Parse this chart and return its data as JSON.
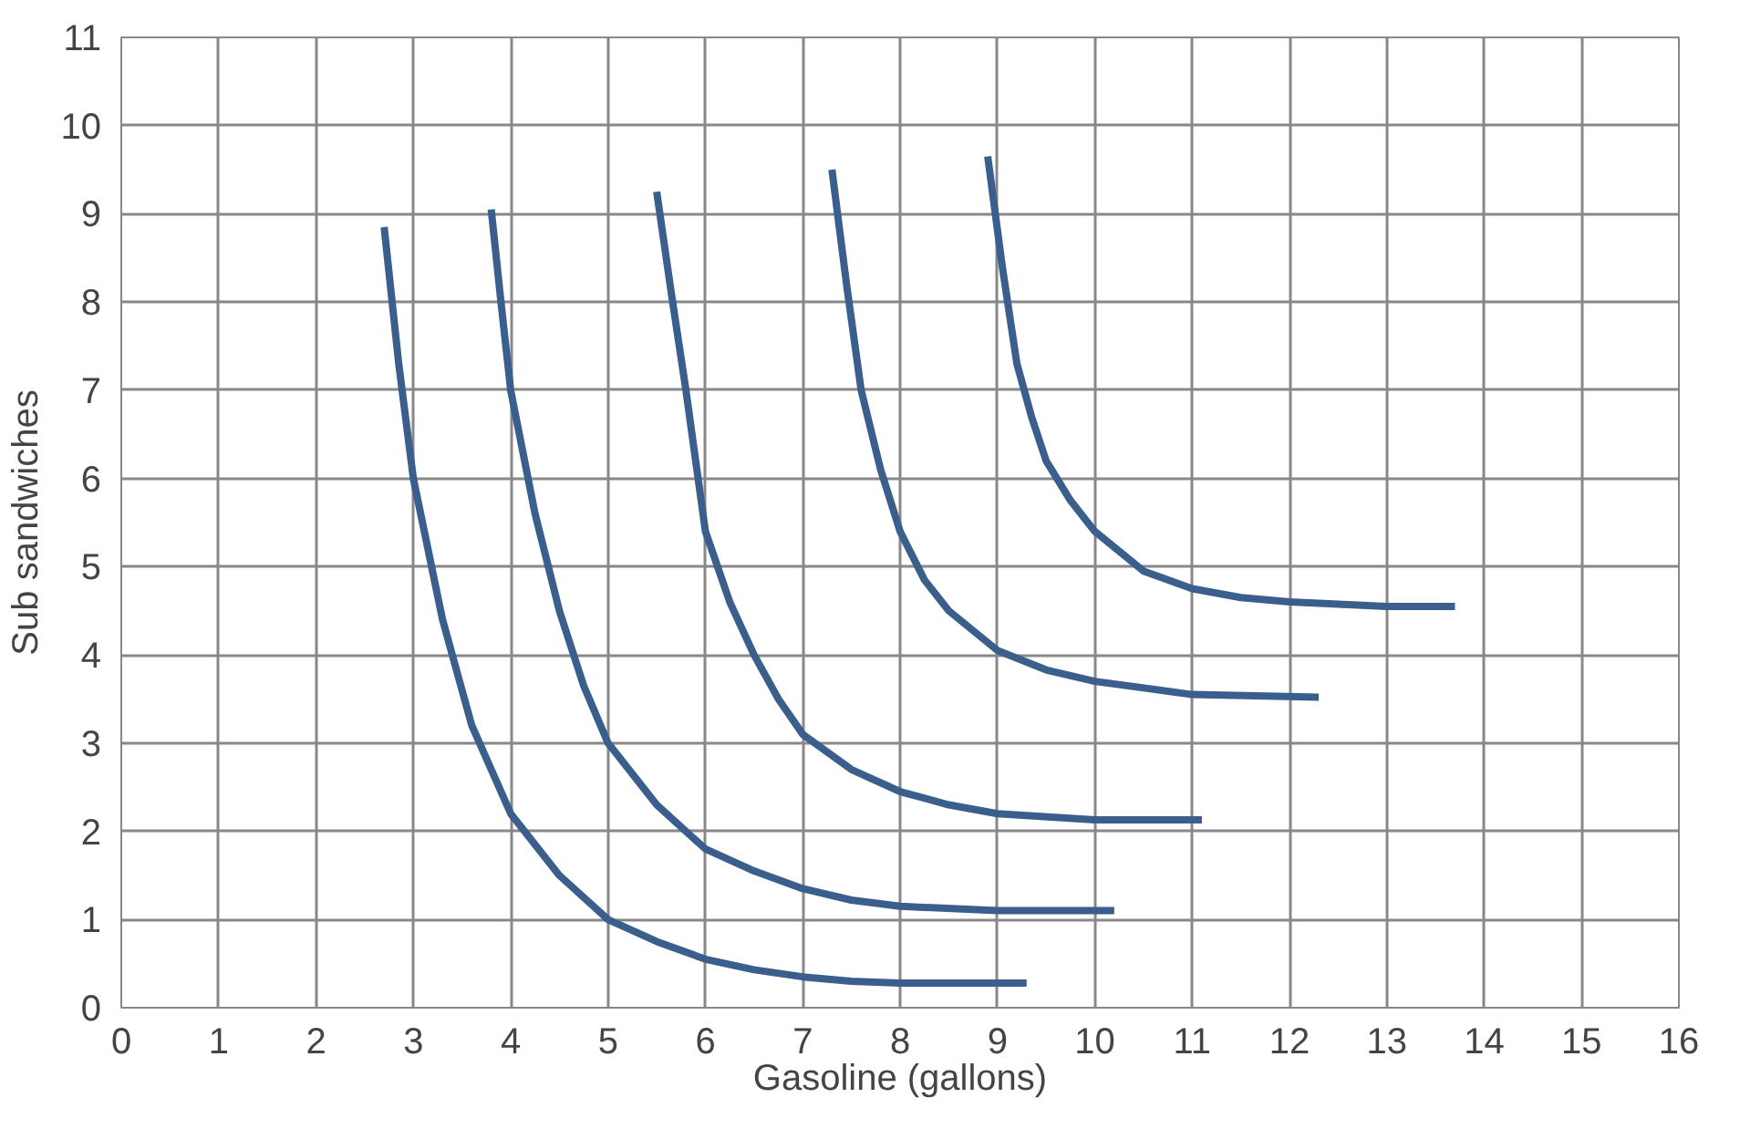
{
  "chart_data": {
    "type": "line",
    "xlabel": "Gasoline (gallons)",
    "ylabel": "Sub sandwiches",
    "xlim": [
      0,
      16
    ],
    "ylim": [
      0,
      11
    ],
    "xticks": [
      0,
      1,
      2,
      3,
      4,
      5,
      6,
      7,
      8,
      9,
      10,
      11,
      12,
      13,
      14,
      15,
      16
    ],
    "yticks": [
      0,
      1,
      2,
      3,
      4,
      5,
      6,
      7,
      8,
      9,
      10,
      11
    ],
    "grid": true,
    "marker": "none",
    "line_style": "solid",
    "series": [
      {
        "color": "#3a5f8c",
        "x": [
          2.7,
          2.85,
          3,
          3.3,
          3.6,
          4,
          4.5,
          5,
          5.5,
          6,
          6.5,
          7,
          7.5,
          8,
          8.5,
          9.3
        ],
        "values": [
          8.85,
          7.3,
          6,
          4.4,
          3.2,
          2.2,
          1.5,
          1.0,
          0.75,
          0.55,
          0.43,
          0.35,
          0.3,
          0.28,
          0.28,
          0.28
        ]
      },
      {
        "color": "#3a5f8c",
        "x": [
          3.8,
          3.9,
          4,
          4.25,
          4.5,
          4.75,
          5,
          5.5,
          6,
          6.5,
          7,
          7.5,
          8,
          9,
          10.2
        ],
        "values": [
          9.05,
          8.0,
          7.0,
          5.6,
          4.5,
          3.65,
          3.0,
          2.3,
          1.8,
          1.55,
          1.35,
          1.22,
          1.15,
          1.1,
          1.1
        ]
      },
      {
        "color": "#3a5f8c",
        "x": [
          5.5,
          5.65,
          5.8,
          6,
          6.25,
          6.5,
          6.75,
          7,
          7.5,
          8,
          8.5,
          9,
          10,
          11.1
        ],
        "values": [
          9.25,
          8.1,
          7.0,
          5.4,
          4.6,
          4.0,
          3.5,
          3.1,
          2.7,
          2.45,
          2.3,
          2.2,
          2.13,
          2.13
        ]
      },
      {
        "color": "#3a5f8c",
        "x": [
          7.3,
          7.45,
          7.6,
          7.8,
          8,
          8.25,
          8.5,
          9,
          9.5,
          10,
          11,
          12.3
        ],
        "values": [
          9.5,
          8.2,
          7.0,
          6.1,
          5.4,
          4.85,
          4.5,
          4.05,
          3.83,
          3.7,
          3.55,
          3.52
        ]
      },
      {
        "color": "#3a5f8c",
        "x": [
          8.9,
          9.05,
          9.2,
          9.35,
          9.5,
          9.75,
          10,
          10.5,
          11,
          11.5,
          12,
          13,
          13.7
        ],
        "values": [
          9.65,
          8.4,
          7.3,
          6.7,
          6.2,
          5.75,
          5.4,
          4.95,
          4.75,
          4.65,
          4.6,
          4.55,
          4.55
        ]
      }
    ]
  }
}
